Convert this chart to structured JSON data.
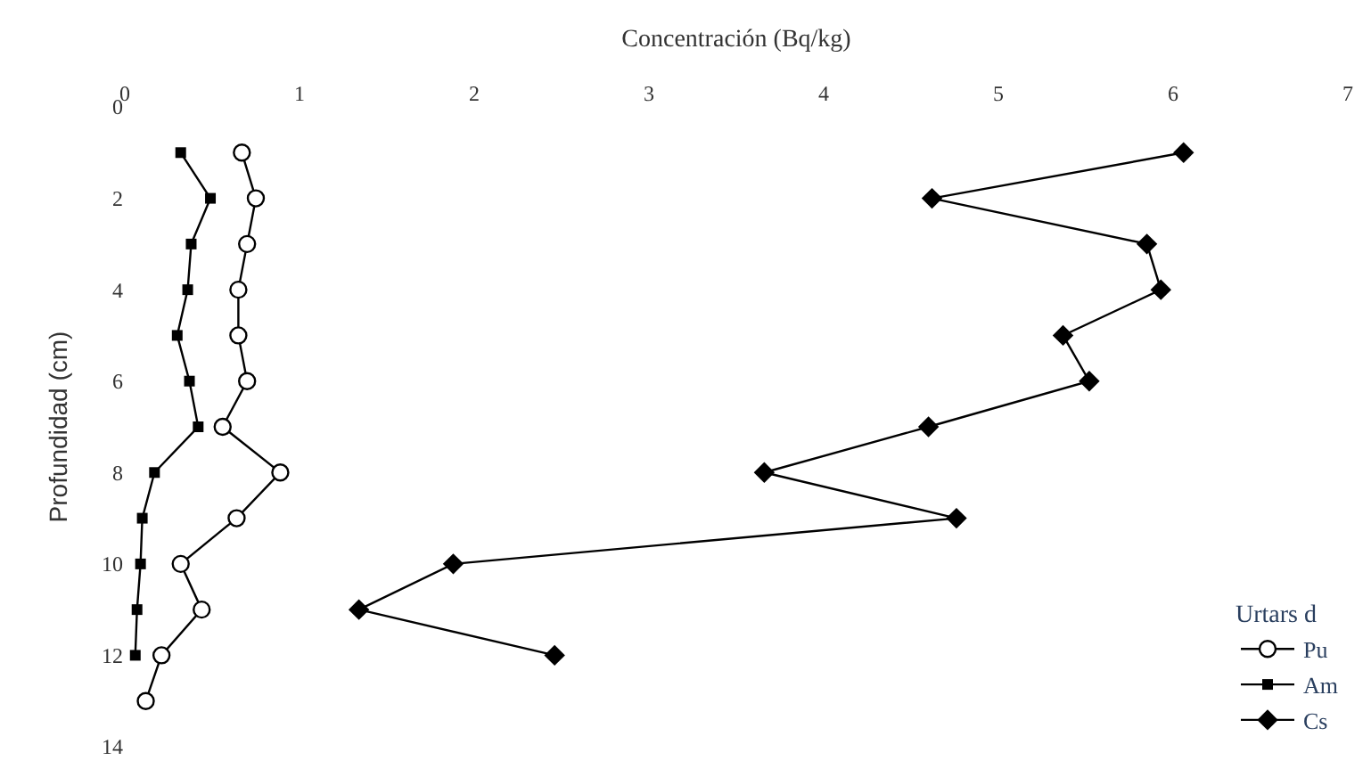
{
  "chart_data": {
    "type": "line",
    "xlabel": "Concentración (Bq/kg)",
    "ylabel": "Profundidad (cm)",
    "legend_title": "Urtars d",
    "xlim": [
      0,
      7
    ],
    "xticks": [
      0,
      1,
      2,
      3,
      4,
      5,
      6,
      7
    ],
    "ylim": [
      14,
      0
    ],
    "yticks": [
      0,
      2,
      4,
      6,
      8,
      10,
      12,
      14
    ],
    "legend": "bottom right",
    "line_style": "solid",
    "series": [
      {
        "name": "Pu",
        "color": "#000000",
        "marker": "circle",
        "x": [
          0.67,
          0.75,
          0.7,
          0.65,
          0.65,
          0.7,
          0.56,
          0.89,
          0.64,
          0.32,
          0.44,
          0.21,
          0.12
        ],
        "values": [
          1,
          2,
          3,
          4,
          5,
          6,
          7,
          8,
          9,
          10,
          11,
          12,
          13
        ]
      },
      {
        "name": "Am",
        "color": "#000000",
        "marker": "square",
        "x": [
          0.32,
          0.49,
          0.38,
          0.36,
          0.3,
          0.37,
          0.42,
          0.17,
          0.1,
          0.09,
          0.07,
          0.06
        ],
        "values": [
          1,
          2,
          3,
          4,
          5,
          6,
          7,
          8,
          9,
          10,
          11,
          12
        ]
      },
      {
        "name": "Cs",
        "color": "#000000",
        "marker": "diamond",
        "x": [
          6.06,
          4.62,
          5.85,
          5.93,
          5.37,
          5.52,
          4.6,
          3.66,
          4.76,
          1.88,
          1.34,
          2.46
        ],
        "values": [
          1,
          2,
          3,
          4,
          5,
          6,
          7,
          8,
          9,
          10,
          11,
          12
        ]
      }
    ]
  }
}
